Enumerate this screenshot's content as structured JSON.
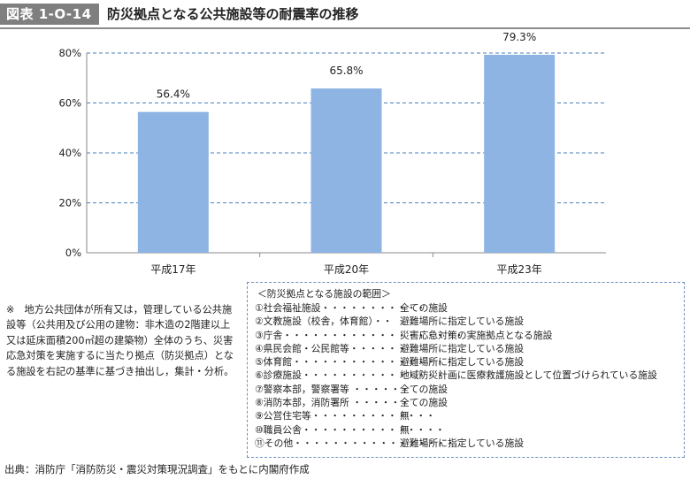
{
  "header": {
    "figure_label": "図表 1-O-14",
    "title": "防災拠点となる公共施設等の耐震率の推移",
    "colors": {
      "label_bg": "#7f7f7f",
      "rule": "#8c8c8c"
    }
  },
  "chart_data": {
    "type": "bar",
    "title": "",
    "xlabel": "",
    "ylabel": "",
    "categories": [
      "平成17年",
      "平成20年",
      "平成23年"
    ],
    "values": [
      56.4,
      65.8,
      79.3
    ],
    "data_labels": [
      "56.4%",
      "65.8%",
      "79.3%"
    ],
    "ylim": [
      0,
      80
    ],
    "yticks": [
      0,
      20,
      40,
      60,
      80
    ],
    "ytick_labels": [
      "0%",
      "20%",
      "40%",
      "60%",
      "80%"
    ],
    "grid": "horizontal dashed",
    "bar_color": "#8eb4e3",
    "grid_color": "#4a7ebb"
  },
  "note": {
    "text": "※　地方公共団体が所有又は，管理している公共施設等（公共用及び公用の建物：非木造の2階建以上又は延床面積200㎡超の建築物）全体のうち、災害応急対策を実施するに当たり拠点（防災拠点）となる施設を右記の基準に基づき抽出し，集計・分析。"
  },
  "legend": {
    "heading": "＜防災拠点となる施設の範囲＞",
    "border_color": "#6e8fc0",
    "items": [
      {
        "name": "①社会福祉施設・・・・・・・・・・・",
        "desc": "全ての施設"
      },
      {
        "name": "②文教施設（校舎，体育館）・・",
        "desc": "避難場所に指定している施設"
      },
      {
        "name": "③庁舎・・・・・・・・・・・・・・・・・・・",
        "desc": "災害応急対策の実施拠点となる施設"
      },
      {
        "name": "④県民会館・公民館等・・・・・・",
        "desc": "避難場所に指定している施設"
      },
      {
        "name": "⑤体育館・・・・・・・・・・・・・・・・・",
        "desc": "避難場所に指定している施設"
      },
      {
        "name": "⑥診療施設・・・・・・・・・・・・・・・",
        "desc": "地域防災計画に医療救護施設として位置づけられている施設"
      },
      {
        "name": "⑦警察本部，警察署等 ・・・・・・",
        "desc": "全ての施設"
      },
      {
        "name": "⑧消防本部，消防署所 ・・・・・・",
        "desc": "全ての施設"
      },
      {
        "name": "⑨公営住宅等・・・・・・・・・・・・・",
        "desc": "無"
      },
      {
        "name": "⑩職員公舎・・・・・・・・・・・・・・・",
        "desc": "無"
      },
      {
        "name": "⑪その他・・・・・・・・・・・・・・・・・",
        "desc": "避難場所に指定している施設"
      }
    ]
  },
  "source": "出典：消防庁「消防防災・震災対策現況調査」をもとに内閣府作成"
}
